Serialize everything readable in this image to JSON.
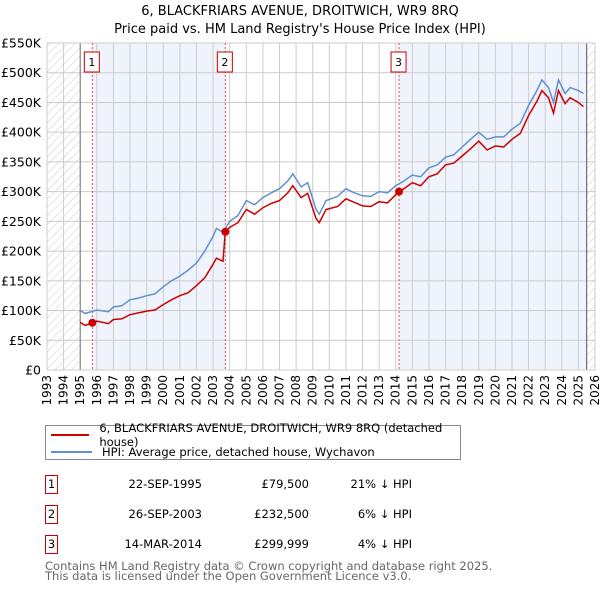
{
  "title_line1": "6, BLACKFRIARS AVENUE, DROITWICH, WR9 8RQ",
  "title_line2": "Price paid vs. HM Land Registry's House Price Index (HPI)",
  "chart_data": {
    "type": "line",
    "title": "6, BLACKFRIARS AVENUE, DROITWICH, WR9 8RQ — Price paid vs. HM Land Registry's House Price Index (HPI)",
    "xlim": [
      1993,
      2026
    ],
    "ylim": [
      0,
      550000
    ],
    "x_ticks": [
      "1993",
      "1994",
      "1995",
      "1996",
      "1997",
      "1998",
      "1999",
      "2000",
      "2001",
      "2002",
      "2003",
      "2004",
      "2005",
      "2006",
      "2007",
      "2008",
      "2009",
      "2010",
      "2011",
      "2012",
      "2013",
      "2014",
      "2015",
      "2016",
      "2017",
      "2018",
      "2019",
      "2020",
      "2021",
      "2022",
      "2023",
      "2024",
      "2025",
      "2026"
    ],
    "y_ticks": [
      {
        "v": 0,
        "label": "£0"
      },
      {
        "v": 50000,
        "label": "£50K"
      },
      {
        "v": 100000,
        "label": "£100K"
      },
      {
        "v": 150000,
        "label": "£150K"
      },
      {
        "v": 200000,
        "label": "£200K"
      },
      {
        "v": 250000,
        "label": "£250K"
      },
      {
        "v": 300000,
        "label": "£300K"
      },
      {
        "v": 350000,
        "label": "£350K"
      },
      {
        "v": 400000,
        "label": "£400K"
      },
      {
        "v": 450000,
        "label": "£450K"
      },
      {
        "v": 500000,
        "label": "£500K"
      },
      {
        "v": 550000,
        "label": "£550K"
      }
    ],
    "grid": true,
    "colors": {
      "property": "#cc0000",
      "hpi": "#6090d0",
      "band": "#eef3fc"
    },
    "series": [
      {
        "name": "6, BLACKFRIARS AVENUE, DROITWICH, WR9 8RQ (detached house)",
        "key": "property",
        "points": [
          [
            1995,
            80
          ],
          [
            1995.3,
            75
          ],
          [
            1995.73,
            79.5
          ],
          [
            1996,
            82
          ],
          [
            1996.7,
            78
          ],
          [
            1997,
            85
          ],
          [
            1997.5,
            86
          ],
          [
            1998,
            93
          ],
          [
            1998.5,
            96
          ],
          [
            1999,
            99
          ],
          [
            1999.5,
            101
          ],
          [
            2000,
            110
          ],
          [
            2000.5,
            118
          ],
          [
            2001,
            125
          ],
          [
            2001.5,
            130
          ],
          [
            2002,
            142
          ],
          [
            2002.5,
            155
          ],
          [
            2003,
            178
          ],
          [
            2003.2,
            188
          ],
          [
            2003.6,
            183
          ],
          [
            2003.74,
            232.5
          ],
          [
            2004,
            240
          ],
          [
            2004.5,
            248
          ],
          [
            2005,
            270
          ],
          [
            2005.5,
            262
          ],
          [
            2006,
            273
          ],
          [
            2006.5,
            280
          ],
          [
            2007,
            285
          ],
          [
            2007.5,
            298
          ],
          [
            2007.8,
            310
          ],
          [
            2008.3,
            290
          ],
          [
            2008.7,
            297
          ],
          [
            2009.2,
            255
          ],
          [
            2009.4,
            248
          ],
          [
            2009.8,
            270
          ],
          [
            2010.5,
            275
          ],
          [
            2011,
            288
          ],
          [
            2011.5,
            282
          ],
          [
            2012,
            276
          ],
          [
            2012.5,
            275
          ],
          [
            2013,
            283
          ],
          [
            2013.5,
            281
          ],
          [
            2014.2,
            300
          ],
          [
            2014.5,
            305
          ],
          [
            2015,
            315
          ],
          [
            2015.5,
            310
          ],
          [
            2016,
            325
          ],
          [
            2016.5,
            330
          ],
          [
            2017,
            345
          ],
          [
            2017.5,
            348
          ],
          [
            2018,
            360
          ],
          [
            2018.5,
            372
          ],
          [
            2019,
            385
          ],
          [
            2019.5,
            370
          ],
          [
            2020,
            377
          ],
          [
            2020.5,
            375
          ],
          [
            2021,
            388
          ],
          [
            2021.5,
            398
          ],
          [
            2022,
            428
          ],
          [
            2022.5,
            452
          ],
          [
            2022.8,
            470
          ],
          [
            2023.2,
            458
          ],
          [
            2023.5,
            432
          ],
          [
            2023.8,
            470
          ],
          [
            2024.2,
            448
          ],
          [
            2024.5,
            458
          ],
          [
            2025,
            450
          ],
          [
            2025.3,
            443
          ]
        ]
      },
      {
        "name": "HPI: Average price, detached house, Wychavon",
        "key": "hpi",
        "points": [
          [
            1995,
            100
          ],
          [
            1995.3,
            95
          ],
          [
            1996,
            101
          ],
          [
            1996.7,
            98
          ],
          [
            1997,
            106
          ],
          [
            1997.5,
            108
          ],
          [
            1998,
            118
          ],
          [
            1998.5,
            121
          ],
          [
            1999,
            125
          ],
          [
            1999.5,
            128
          ],
          [
            2000,
            140
          ],
          [
            2000.5,
            150
          ],
          [
            2001,
            158
          ],
          [
            2001.5,
            168
          ],
          [
            2002,
            180
          ],
          [
            2002.5,
            200
          ],
          [
            2003,
            225
          ],
          [
            2003.2,
            238
          ],
          [
            2003.6,
            232
          ],
          [
            2004,
            250
          ],
          [
            2004.5,
            260
          ],
          [
            2005,
            285
          ],
          [
            2005.5,
            278
          ],
          [
            2006,
            290
          ],
          [
            2006.5,
            298
          ],
          [
            2007,
            305
          ],
          [
            2007.5,
            318
          ],
          [
            2007.8,
            330
          ],
          [
            2008.3,
            308
          ],
          [
            2008.7,
            315
          ],
          [
            2009.2,
            270
          ],
          [
            2009.4,
            262
          ],
          [
            2009.8,
            285
          ],
          [
            2010.5,
            292
          ],
          [
            2011,
            305
          ],
          [
            2011.5,
            298
          ],
          [
            2012,
            293
          ],
          [
            2012.5,
            292
          ],
          [
            2013,
            300
          ],
          [
            2013.5,
            298
          ],
          [
            2014,
            310
          ],
          [
            2014.5,
            318
          ],
          [
            2015,
            328
          ],
          [
            2015.5,
            325
          ],
          [
            2016,
            340
          ],
          [
            2016.5,
            345
          ],
          [
            2017,
            358
          ],
          [
            2017.5,
            362
          ],
          [
            2018,
            375
          ],
          [
            2018.5,
            388
          ],
          [
            2019,
            400
          ],
          [
            2019.5,
            388
          ],
          [
            2020,
            392
          ],
          [
            2020.5,
            392
          ],
          [
            2021,
            405
          ],
          [
            2021.5,
            415
          ],
          [
            2022,
            445
          ],
          [
            2022.5,
            470
          ],
          [
            2022.8,
            488
          ],
          [
            2023.2,
            475
          ],
          [
            2023.5,
            450
          ],
          [
            2023.8,
            488
          ],
          [
            2024.2,
            465
          ],
          [
            2024.5,
            475
          ],
          [
            2025,
            470
          ],
          [
            2025.3,
            465
          ]
        ]
      }
    ],
    "point_units": "thousands GBP",
    "data_start": 1995,
    "data_end": 2025.5,
    "sales": [
      {
        "label": "1",
        "x": 1995.73,
        "y": 79.5
      },
      {
        "label": "2",
        "x": 2003.74,
        "y": 232.5
      },
      {
        "label": "3",
        "x": 2014.2,
        "y": 300
      }
    ]
  },
  "legend": {
    "property": "6, BLACKFRIARS AVENUE, DROITWICH, WR9 8RQ (detached house)",
    "hpi": "HPI: Average price, detached house, Wychavon"
  },
  "transactions": [
    {
      "num": "1",
      "date": "22-SEP-1995",
      "price": "£79,500",
      "hpi": "21% ↓ HPI"
    },
    {
      "num": "2",
      "date": "26-SEP-2003",
      "price": "£232,500",
      "hpi": "6% ↓ HPI"
    },
    {
      "num": "3",
      "date": "14-MAR-2014",
      "price": "£299,999",
      "hpi": "4% ↓ HPI"
    }
  ],
  "footer": {
    "line1": "Contains HM Land Registry data © Crown copyright and database right 2025.",
    "line2": "This data is licensed under the Open Government Licence v3.0."
  }
}
